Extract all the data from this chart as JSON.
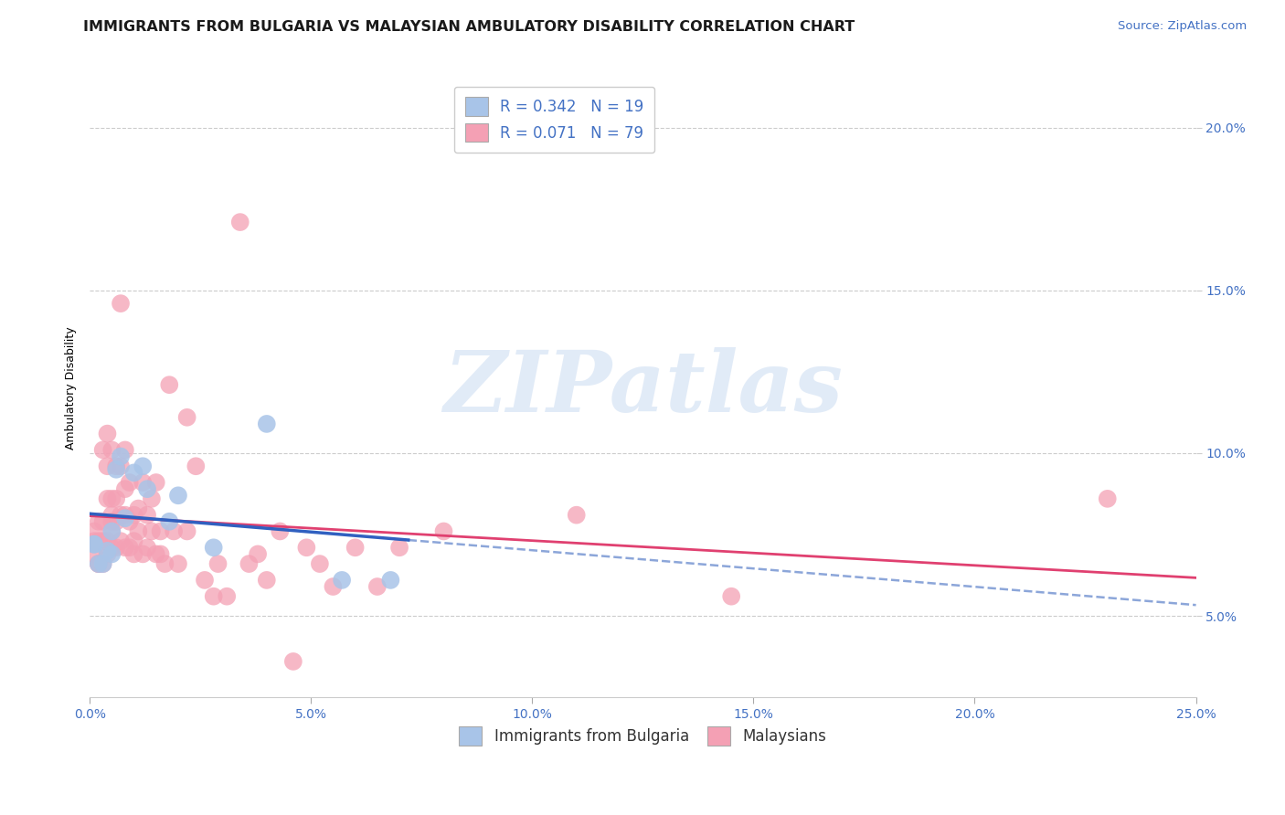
{
  "title": "IMMIGRANTS FROM BULGARIA VS MALAYSIAN AMBULATORY DISABILITY CORRELATION CHART",
  "source": "Source: ZipAtlas.com",
  "ylabel": "Ambulatory Disability",
  "xlim": [
    0.0,
    0.25
  ],
  "ylim": [
    0.025,
    0.215
  ],
  "ytick_labels": [
    "5.0%",
    "10.0%",
    "15.0%",
    "20.0%"
  ],
  "ytick_vals": [
    0.05,
    0.1,
    0.15,
    0.2
  ],
  "xtick_labels": [
    "0.0%",
    "",
    "",
    "",
    "",
    "",
    "",
    "",
    "",
    "",
    "5.0%",
    "",
    "",
    "",
    "",
    "",
    "",
    "",
    "",
    "",
    "10.0%",
    "",
    "",
    "",
    "",
    "",
    "",
    "",
    "",
    "",
    "15.0%",
    "",
    "",
    "",
    "",
    "",
    "",
    "",
    "",
    "",
    "20.0%",
    "",
    "",
    "",
    "",
    "",
    "",
    "",
    "",
    "",
    "25.0%"
  ],
  "xtick_vals_major": [
    0.0,
    0.05,
    0.1,
    0.15,
    0.2,
    0.25
  ],
  "xtick_labels_major": [
    "0.0%",
    "5.0%",
    "10.0%",
    "15.0%",
    "20.0%",
    "25.0%"
  ],
  "legend_r_bulgaria": "0.342",
  "legend_n_bulgaria": "19",
  "legend_r_malaysian": "0.071",
  "legend_n_malaysian": "79",
  "bulgaria_color": "#a8c4e8",
  "malaysian_color": "#f4a0b4",
  "bulgaria_line_color": "#3060c0",
  "bulgarian_dashed_color": "#7090d0",
  "malaysian_line_color": "#e04070",
  "background_color": "#ffffff",
  "grid_color": "#cccccc",
  "bulgaria_scatter": [
    [
      0.001,
      0.072
    ],
    [
      0.001,
      0.072
    ],
    [
      0.002,
      0.066
    ],
    [
      0.003,
      0.066
    ],
    [
      0.004,
      0.07
    ],
    [
      0.005,
      0.076
    ],
    [
      0.005,
      0.069
    ],
    [
      0.006,
      0.095
    ],
    [
      0.007,
      0.099
    ],
    [
      0.008,
      0.08
    ],
    [
      0.01,
      0.094
    ],
    [
      0.012,
      0.096
    ],
    [
      0.013,
      0.089
    ],
    [
      0.018,
      0.079
    ],
    [
      0.02,
      0.087
    ],
    [
      0.028,
      0.071
    ],
    [
      0.04,
      0.109
    ],
    [
      0.057,
      0.061
    ],
    [
      0.068,
      0.061
    ]
  ],
  "malaysian_scatter": [
    [
      0.001,
      0.073
    ],
    [
      0.001,
      0.069
    ],
    [
      0.001,
      0.076
    ],
    [
      0.002,
      0.066
    ],
    [
      0.002,
      0.073
    ],
    [
      0.002,
      0.079
    ],
    [
      0.002,
      0.066
    ],
    [
      0.003,
      0.073
    ],
    [
      0.003,
      0.079
    ],
    [
      0.003,
      0.101
    ],
    [
      0.003,
      0.066
    ],
    [
      0.004,
      0.073
    ],
    [
      0.004,
      0.086
    ],
    [
      0.004,
      0.096
    ],
    [
      0.004,
      0.106
    ],
    [
      0.004,
      0.069
    ],
    [
      0.005,
      0.076
    ],
    [
      0.005,
      0.081
    ],
    [
      0.005,
      0.086
    ],
    [
      0.005,
      0.101
    ],
    [
      0.005,
      0.071
    ],
    [
      0.005,
      0.079
    ],
    [
      0.006,
      0.086
    ],
    [
      0.006,
      0.096
    ],
    [
      0.006,
      0.071
    ],
    [
      0.006,
      0.079
    ],
    [
      0.007,
      0.096
    ],
    [
      0.007,
      0.146
    ],
    [
      0.007,
      0.073
    ],
    [
      0.007,
      0.081
    ],
    [
      0.008,
      0.089
    ],
    [
      0.008,
      0.101
    ],
    [
      0.008,
      0.071
    ],
    [
      0.008,
      0.081
    ],
    [
      0.009,
      0.071
    ],
    [
      0.009,
      0.079
    ],
    [
      0.009,
      0.091
    ],
    [
      0.01,
      0.069
    ],
    [
      0.01,
      0.081
    ],
    [
      0.01,
      0.073
    ],
    [
      0.011,
      0.083
    ],
    [
      0.011,
      0.076
    ],
    [
      0.012,
      0.091
    ],
    [
      0.012,
      0.069
    ],
    [
      0.013,
      0.081
    ],
    [
      0.013,
      0.071
    ],
    [
      0.014,
      0.086
    ],
    [
      0.014,
      0.076
    ],
    [
      0.015,
      0.091
    ],
    [
      0.015,
      0.069
    ],
    [
      0.016,
      0.069
    ],
    [
      0.016,
      0.076
    ],
    [
      0.017,
      0.066
    ],
    [
      0.018,
      0.121
    ],
    [
      0.019,
      0.076
    ],
    [
      0.02,
      0.066
    ],
    [
      0.022,
      0.111
    ],
    [
      0.022,
      0.076
    ],
    [
      0.024,
      0.096
    ],
    [
      0.026,
      0.061
    ],
    [
      0.028,
      0.056
    ],
    [
      0.029,
      0.066
    ],
    [
      0.031,
      0.056
    ],
    [
      0.034,
      0.171
    ],
    [
      0.036,
      0.066
    ],
    [
      0.038,
      0.069
    ],
    [
      0.04,
      0.061
    ],
    [
      0.043,
      0.076
    ],
    [
      0.046,
      0.036
    ],
    [
      0.049,
      0.071
    ],
    [
      0.052,
      0.066
    ],
    [
      0.055,
      0.059
    ],
    [
      0.06,
      0.071
    ],
    [
      0.065,
      0.059
    ],
    [
      0.07,
      0.071
    ],
    [
      0.08,
      0.076
    ],
    [
      0.11,
      0.081
    ],
    [
      0.145,
      0.056
    ],
    [
      0.23,
      0.086
    ]
  ],
  "watermark_text": "ZIPatlas",
  "watermark_color": "#c5d8f0",
  "title_fontsize": 11.5,
  "axis_label_fontsize": 9,
  "tick_fontsize": 10,
  "legend_fontsize": 12,
  "source_fontsize": 9.5
}
